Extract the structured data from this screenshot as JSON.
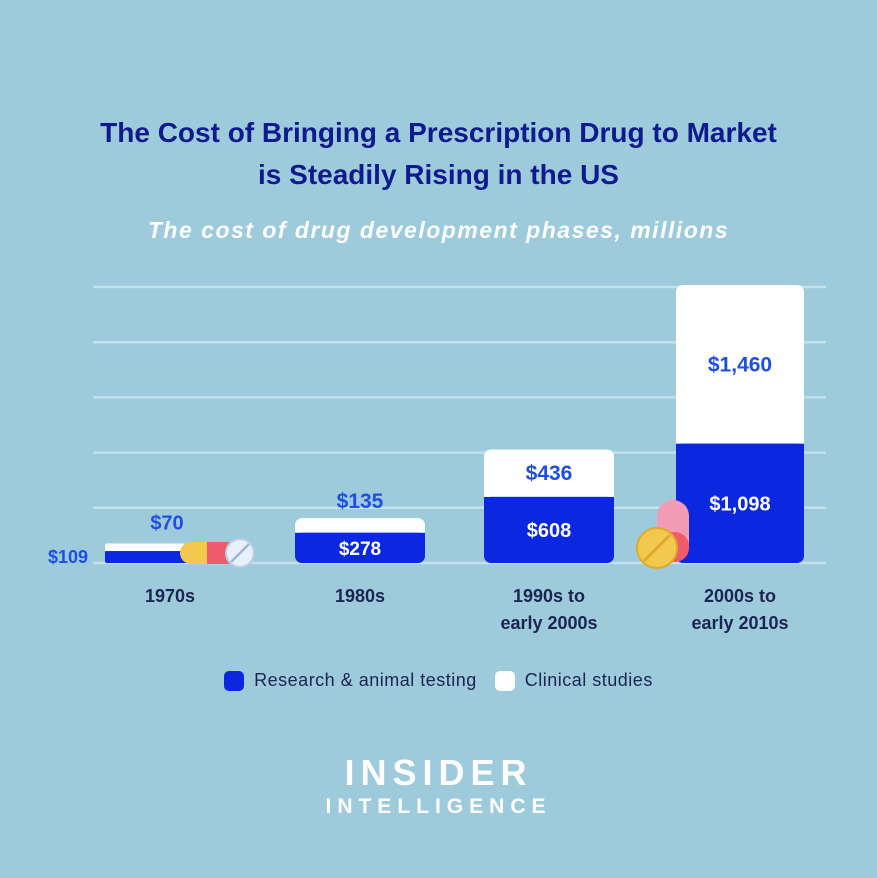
{
  "header": {
    "title_line1": "The Cost of Bringing a Prescription Drug to Market",
    "title_line2": "is Steadily Rising in the US",
    "subtitle": "The cost of drug development phases, millions"
  },
  "chart_data": {
    "type": "bar",
    "stacked": true,
    "categories": [
      "1970s",
      "1980s",
      "1990s to early 2000s",
      "2000s to early 2010s"
    ],
    "series": [
      {
        "name": "Research & animal testing",
        "color": "#0b27e0",
        "values": [
          109,
          278,
          608,
          1098
        ],
        "labels": [
          "$109",
          "$278",
          "$608",
          "$1,098"
        ]
      },
      {
        "name": "Clinical studies",
        "color": "#ffffff",
        "values": [
          70,
          135,
          436,
          1460
        ],
        "labels": [
          "$70",
          "$135",
          "$436",
          "$1,460"
        ]
      }
    ],
    "ylim": [
      0,
      2558
    ],
    "grid": true,
    "legend_position": "bottom"
  },
  "legend": {
    "research_label": "Research & animal testing",
    "clinical_label": "Clinical studies"
  },
  "brand": {
    "line1": "INSIDER",
    "line2": "INTELLIGENCE"
  },
  "colors": {
    "background": "#9dcbdc",
    "title": "#0f1a8c",
    "research": "#0b27e0",
    "clinical": "#ffffff",
    "value_label": "#1f4fe0"
  }
}
